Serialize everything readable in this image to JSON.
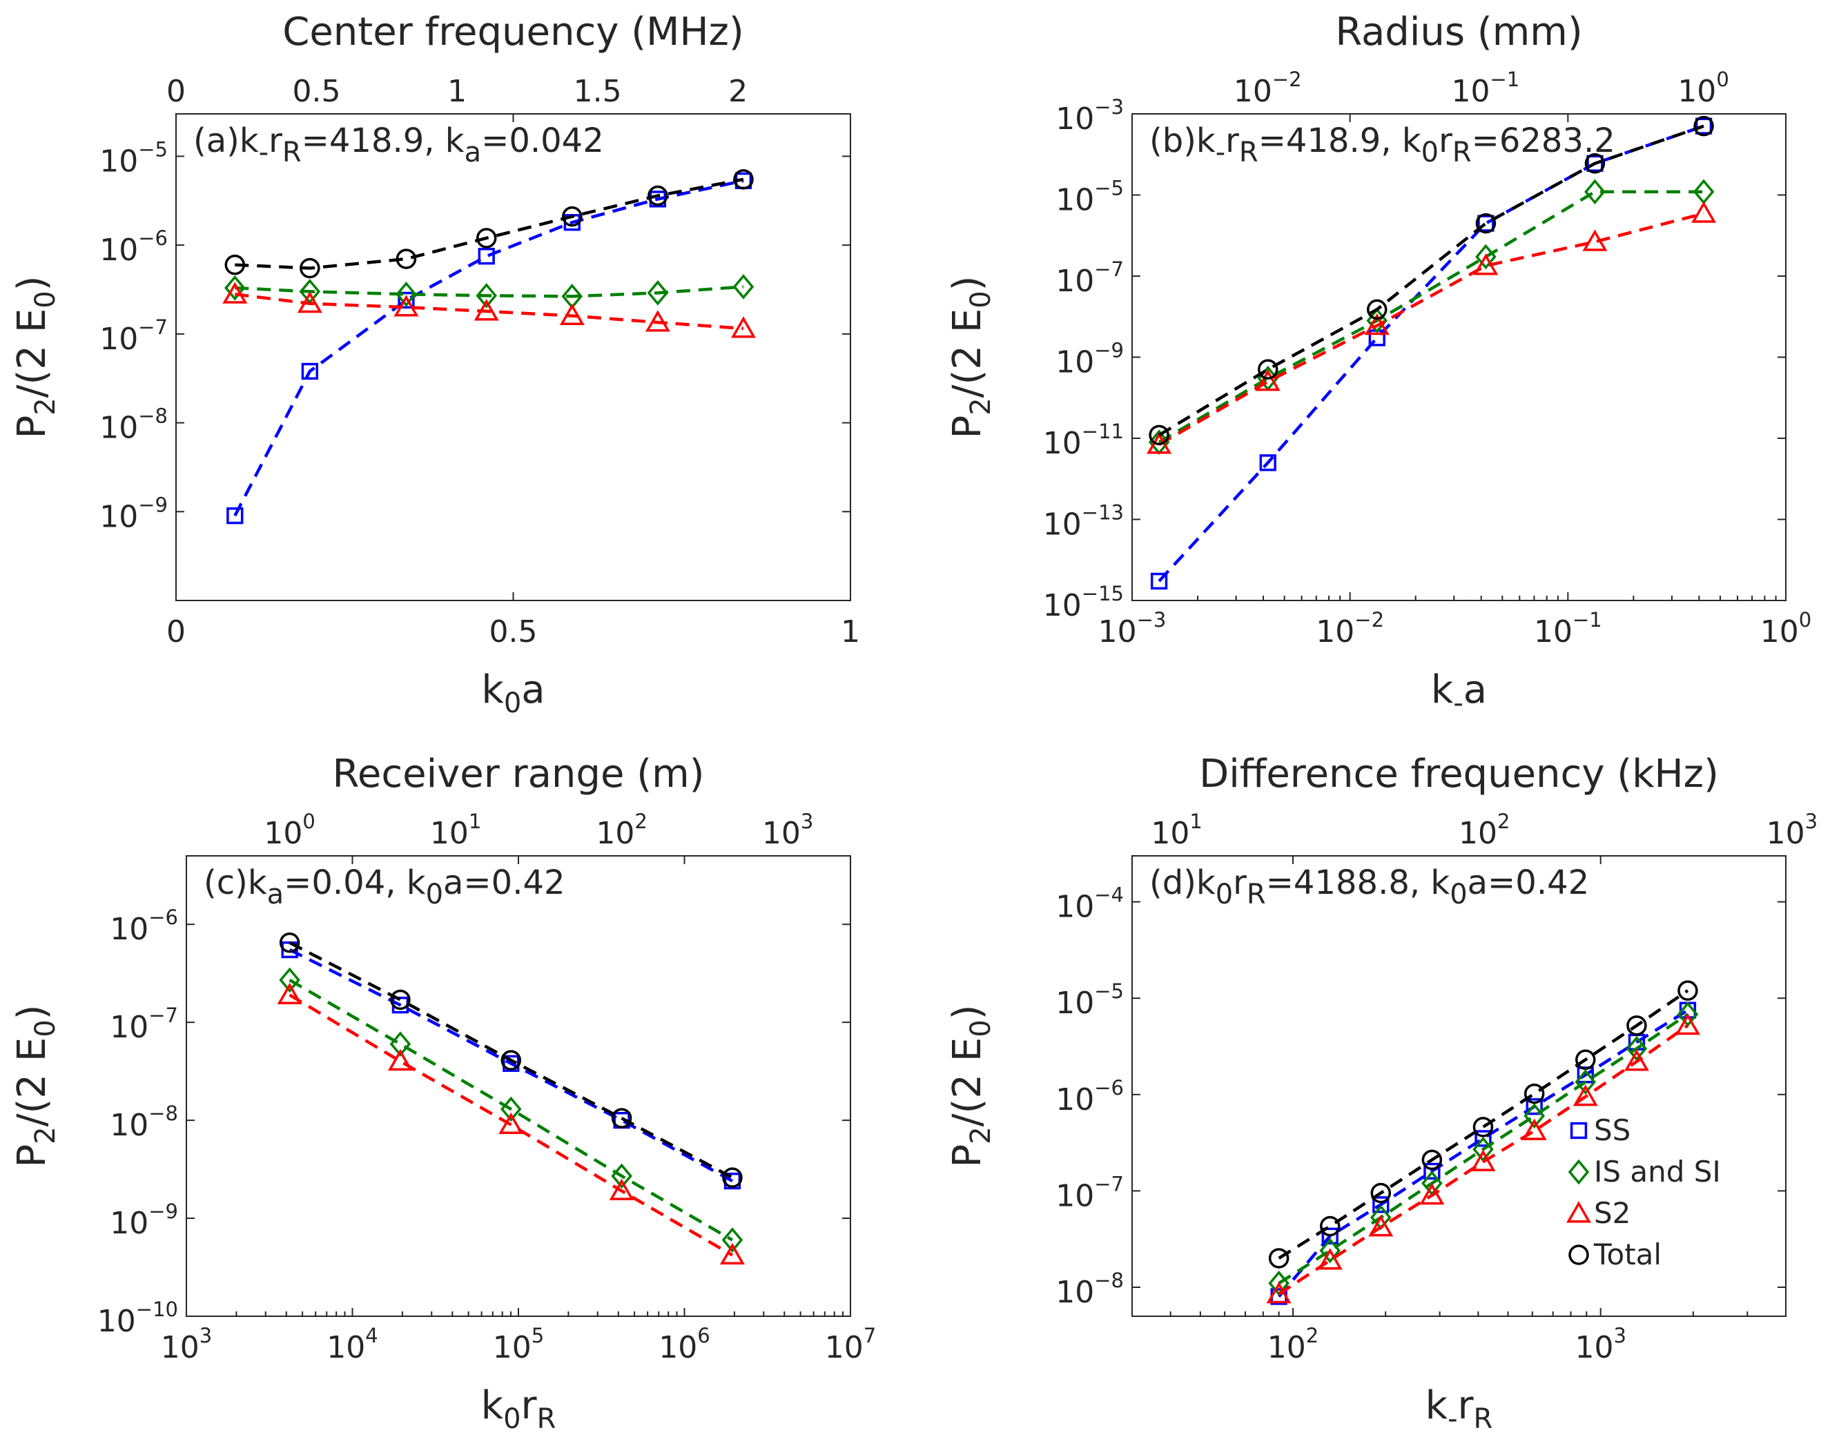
{
  "figure": {
    "panels": [
      "a",
      "b",
      "c",
      "d"
    ]
  },
  "chart_data": [
    {
      "panel": "a",
      "type": "line",
      "title": "",
      "annotation": "(a)k_r_R=418.9, k_a=0.042",
      "xlabel": "k0a",
      "ylabel": "P2/(2 E0)",
      "top_xlabel": "Center frequency (MHz)",
      "xscale": "linear",
      "yscale": "log",
      "xlim": [
        0,
        1
      ],
      "ylim": [
        1e-10,
        3e-05
      ],
      "xticks": [
        0,
        0.5,
        1
      ],
      "xtick_labels": [
        "0",
        "0.5",
        "1"
      ],
      "yticks": [
        1e-09,
        1e-08,
        1e-07,
        1e-06,
        1e-05
      ],
      "ytick_exps": [
        "-9",
        "-8",
        "-7",
        "-6",
        "-5"
      ],
      "top_xlim": [
        0,
        2.4
      ],
      "top_xticks": [
        0,
        0.5,
        1,
        1.5,
        2
      ],
      "top_xtick_labels": [
        "0",
        "0.5",
        "1",
        "1.5",
        "2"
      ],
      "x": [
        0.0873,
        0.1984,
        0.3413,
        0.4603,
        0.5873,
        0.7143,
        0.8413
      ],
      "series": [
        {
          "name": "SS",
          "color": "#0000ff",
          "marker": "square",
          "values": [
            9e-10,
            3.8e-08,
            2.4e-07,
            7.5e-07,
            1.8e-06,
            3.3e-06,
            5.3e-06
          ]
        },
        {
          "name": "IS and SI",
          "color": "#008000",
          "marker": "diamond",
          "values": [
            3.3e-07,
            3e-07,
            2.8e-07,
            2.7e-07,
            2.65e-07,
            2.9e-07,
            3.4e-07
          ]
        },
        {
          "name": "S2",
          "color": "#ff0000",
          "marker": "triangle",
          "values": [
            2.8e-07,
            2.2e-07,
            2e-07,
            1.8e-07,
            1.6e-07,
            1.35e-07,
            1.15e-07
          ]
        },
        {
          "name": "Total",
          "color": "#000000",
          "marker": "circle",
          "values": [
            6e-07,
            5.5e-07,
            7e-07,
            1.2e-06,
            2.1e-06,
            3.6e-06,
            5.5e-06
          ]
        }
      ]
    },
    {
      "panel": "b",
      "type": "line",
      "title": "",
      "annotation": "(b)k_r_R=418.9, k0r_R=6283.2",
      "xlabel": "k_a",
      "ylabel": "P2/(2 E0)",
      "top_xlabel": "Radius (mm)",
      "xscale": "log",
      "yscale": "log",
      "xlim": [
        0.001,
        1
      ],
      "ylim": [
        1e-15,
        0.001
      ],
      "xticks": [
        0.001,
        0.01,
        0.1,
        1
      ],
      "xtick_exps": [
        "-3",
        "-2",
        "-1",
        "0"
      ],
      "yticks": [
        1e-15,
        1e-13,
        1e-11,
        1e-09,
        1e-07,
        1e-05,
        0.001
      ],
      "ytick_exps": [
        "-15",
        "-13",
        "-11",
        "-9",
        "-7",
        "-5",
        "-3"
      ],
      "top_xlim": [
        0.00239,
        2.39
      ],
      "top_xticks": [
        0.01,
        0.1,
        1
      ],
      "top_xtick_exps": [
        "-2",
        "-1",
        "0"
      ],
      "x": [
        0.00133,
        0.0042,
        0.0133,
        0.042,
        0.133,
        0.42
      ],
      "series": [
        {
          "name": "SS",
          "color": "#0000ff",
          "marker": "square",
          "values": [
            3e-15,
            2.5e-12,
            3e-09,
            2e-06,
            6e-05,
            0.0005
          ]
        },
        {
          "name": "IS and SI",
          "color": "#008000",
          "marker": "diamond",
          "values": [
            8e-12,
            3e-10,
            8e-09,
            3e-07,
            1.2e-05,
            1.2e-05
          ]
        },
        {
          "name": "S2",
          "color": "#ff0000",
          "marker": "triangle",
          "values": [
            7e-12,
            2.5e-10,
            6e-09,
            1.8e-07,
            7e-07,
            3.5e-06
          ]
        },
        {
          "name": "Total",
          "color": "#000000",
          "marker": "circle",
          "values": [
            1.2e-11,
            5e-10,
            1.5e-08,
            2e-06,
            6e-05,
            0.0005
          ]
        }
      ]
    },
    {
      "panel": "c",
      "type": "line",
      "title": "",
      "annotation": "(c)k_a=0.04, k0a=0.42",
      "xlabel": "k0r_R",
      "ylabel": "P2/(2 E0)",
      "top_xlabel": "Receiver range (m)",
      "xscale": "log",
      "yscale": "log",
      "xlim": [
        1000,
        10000000
      ],
      "ylim": [
        1e-10,
        5e-06
      ],
      "xticks": [
        1000,
        10000,
        100000,
        1000000,
        10000000
      ],
      "xtick_exps": [
        "3",
        "4",
        "5",
        "6",
        "7"
      ],
      "yticks": [
        1e-10,
        1e-09,
        1e-08,
        1e-07,
        1e-06
      ],
      "ytick_exps": [
        "-10",
        "-9",
        "-8",
        "-7",
        "-6"
      ],
      "top_xlim": [
        0.2387,
        2387
      ],
      "top_xticks": [
        1,
        10,
        100,
        1000
      ],
      "top_xtick_exps": [
        "0",
        "1",
        "2",
        "3"
      ],
      "x": [
        4189,
        19440,
        90240,
        418900,
        1944000
      ],
      "series": [
        {
          "name": "SS",
          "color": "#0000ff",
          "marker": "square",
          "values": [
            5.5e-07,
            1.5e-07,
            3.8e-08,
            1e-08,
            2.4e-09
          ]
        },
        {
          "name": "IS and SI",
          "color": "#008000",
          "marker": "diamond",
          "values": [
            2.7e-07,
            6e-08,
            1.3e-08,
            2.7e-09,
            6e-10
          ]
        },
        {
          "name": "S2",
          "color": "#ff0000",
          "marker": "triangle",
          "values": [
            1.9e-07,
            4e-08,
            9e-09,
            1.9e-09,
            4.2e-10
          ]
        },
        {
          "name": "Total",
          "color": "#000000",
          "marker": "circle",
          "values": [
            6.5e-07,
            1.7e-07,
            4.1e-08,
            1.05e-08,
            2.6e-09
          ]
        }
      ]
    },
    {
      "panel": "d",
      "type": "line",
      "title": "",
      "annotation": "(d)k0r_R=4188.8, k0a=0.42",
      "xlabel": "k_r_R",
      "ylabel": "P2/(2 E0)",
      "top_xlabel": "Difference frequency (kHz)",
      "xscale": "log",
      "yscale": "log",
      "xlim": [
        30,
        4000
      ],
      "ylim": [
        5e-09,
        0.0003
      ],
      "xticks": [
        100,
        1000
      ],
      "xtick_exps": [
        "2",
        "3"
      ],
      "yticks": [
        1e-08,
        1e-07,
        1e-06,
        1e-05,
        0.0001
      ],
      "ytick_exps": [
        "-8",
        "-7",
        "-6",
        "-5",
        "-4"
      ],
      "top_xlim": [
        7.162,
        955
      ],
      "top_xticks": [
        10,
        100,
        1000
      ],
      "top_xtick_exps": [
        "1",
        "2",
        "3"
      ],
      "x": [
        90,
        132,
        193,
        283,
        415,
        609,
        893,
        1310,
        1920
      ],
      "series": [
        {
          "name": "SS",
          "color": "#0000ff",
          "marker": "square",
          "values": [
            8e-09,
            3.4e-08,
            7.2e-08,
            1.6e-07,
            3.5e-07,
            7.5e-07,
            1.6e-06,
            3.5e-06,
            7.5e-06
          ]
        },
        {
          "name": "IS and SI",
          "color": "#008000",
          "marker": "diamond",
          "values": [
            1.1e-08,
            2.4e-08,
            5.3e-08,
            1.2e-07,
            2.7e-07,
            6e-07,
            1.35e-06,
            3e-06,
            6.8e-06
          ]
        },
        {
          "name": "S2",
          "color": "#ff0000",
          "marker": "triangle",
          "values": [
            8.5e-09,
            1.9e-08,
            4.2e-08,
            9e-08,
            2e-07,
            4.2e-07,
            9.5e-07,
            2.2e-06,
            5.2e-06
          ]
        },
        {
          "name": "Total",
          "color": "#000000",
          "marker": "circle",
          "values": [
            2e-08,
            4.3e-08,
            9.5e-08,
            2.1e-07,
            4.6e-07,
            1.02e-06,
            2.3e-06,
            5.2e-06,
            1.2e-05
          ]
        }
      ],
      "legend": {
        "placement": "bottom-right",
        "entries": [
          "SS",
          "IS and SI",
          "S2",
          "Total"
        ]
      }
    }
  ]
}
